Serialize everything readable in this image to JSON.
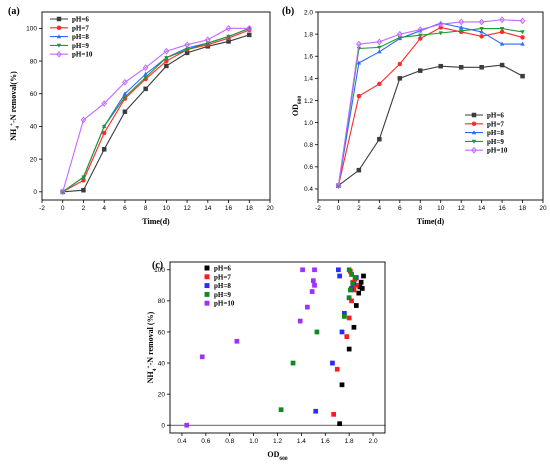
{
  "chart_data": [
    {
      "panel": "(a)",
      "type": "line",
      "xlabel": "Time(d)",
      "ylabel": "NH4+-N removal(%)",
      "ylabel_parts": {
        "base": "NH",
        "sub": "4",
        "sup": "+",
        "rest": "-N removal(%)"
      },
      "xlim": [
        -2,
        20
      ],
      "ylim": [
        -5,
        110
      ],
      "xticks": [
        -2,
        0,
        2,
        4,
        6,
        8,
        10,
        12,
        14,
        16,
        18,
        20
      ],
      "yticks": [
        0,
        20,
        40,
        60,
        80,
        100
      ],
      "x": [
        0,
        2,
        4,
        6,
        8,
        10,
        12,
        14,
        16,
        18
      ],
      "legend_position": "top-left",
      "series": [
        {
          "name": "pH=6",
          "color": "#3c3c3c",
          "marker": "square",
          "values": [
            0,
            1,
            26,
            49,
            63,
            77,
            85,
            89,
            92,
            96
          ]
        },
        {
          "name": "pH=7",
          "color": "#ff2a2a",
          "marker": "circle",
          "values": [
            0,
            7,
            36,
            57,
            69,
            80,
            87,
            90,
            94,
            99
          ]
        },
        {
          "name": "pH=8",
          "color": "#2a6bff",
          "marker": "triangle-up",
          "values": [
            0,
            9,
            40,
            60,
            72,
            82,
            88,
            91,
            95,
            100
          ]
        },
        {
          "name": "pH=9",
          "color": "#1f9a2e",
          "marker": "triangle-down",
          "values": [
            0,
            9,
            40,
            58,
            70,
            82,
            87,
            91,
            95,
            100
          ]
        },
        {
          "name": "pH=10",
          "color": "#c26aff",
          "marker": "diamond",
          "values": [
            0,
            44,
            54,
            67,
            76,
            86,
            90,
            93,
            100,
            100
          ]
        }
      ]
    },
    {
      "panel": "(b)",
      "type": "line",
      "xlabel": "Time(d)",
      "ylabel": "OD600",
      "ylabel_parts": {
        "base": "OD",
        "sub": "600"
      },
      "xlim": [
        -2,
        20
      ],
      "ylim": [
        0.3,
        2.0
      ],
      "xticks": [
        -2,
        0,
        2,
        4,
        6,
        8,
        10,
        12,
        14,
        16,
        18,
        20
      ],
      "yticks": [
        0.4,
        0.6,
        0.8,
        1.0,
        1.2,
        1.4,
        1.6,
        1.8,
        2.0
      ],
      "ytick_labels": [
        "0.4",
        "0.6",
        "0.8",
        "1.0",
        "1.2",
        "1.4",
        "1.6",
        "1.8",
        "2.0"
      ],
      "x": [
        0,
        2,
        4,
        6,
        8,
        10,
        12,
        14,
        16,
        18
      ],
      "legend_position": "bottom-right",
      "series": [
        {
          "name": "pH=6",
          "color": "#3c3c3c",
          "marker": "square",
          "values": [
            0.43,
            0.57,
            0.85,
            1.4,
            1.47,
            1.51,
            1.5,
            1.5,
            1.52,
            1.42
          ]
        },
        {
          "name": "pH=7",
          "color": "#ff2a2a",
          "marker": "circle",
          "values": [
            0.43,
            1.24,
            1.35,
            1.53,
            1.76,
            1.86,
            1.82,
            1.78,
            1.82,
            1.77
          ]
        },
        {
          "name": "pH=8",
          "color": "#2a6bff",
          "marker": "triangle-up",
          "values": [
            0.43,
            1.54,
            1.64,
            1.76,
            1.83,
            1.9,
            1.86,
            1.82,
            1.71,
            1.71
          ]
        },
        {
          "name": "pH=9",
          "color": "#1f9a2e",
          "marker": "triangle-down",
          "values": [
            0.43,
            1.67,
            1.68,
            1.77,
            1.79,
            1.81,
            1.83,
            1.85,
            1.85,
            1.82
          ]
        },
        {
          "name": "pH=10",
          "color": "#c26aff",
          "marker": "diamond",
          "values": [
            0.43,
            1.71,
            1.73,
            1.8,
            1.84,
            1.89,
            1.91,
            1.91,
            1.93,
            1.92
          ]
        }
      ]
    },
    {
      "panel": "(c)",
      "type": "scatter",
      "xlabel": "OD600",
      "xlabel_parts": {
        "base": "OD",
        "sub": "600"
      },
      "ylabel": "NH4+-N removal (%)",
      "ylabel_parts": {
        "base": "NH",
        "sub": "4",
        "sup": "+",
        "rest": "-N removal (%)"
      },
      "xlim": [
        0.3,
        2.1
      ],
      "ylim": [
        -5,
        105
      ],
      "xticks": [
        0.4,
        0.6,
        0.8,
        1.0,
        1.2,
        1.4,
        1.6,
        1.8,
        2.0
      ],
      "xtick_labels": [
        "0.4",
        "0.6",
        "0.8",
        "1.0",
        "1.2",
        "1.4",
        "1.6",
        "1.8",
        "2.0"
      ],
      "yticks": [
        0,
        20,
        40,
        60,
        80,
        100
      ],
      "hline": 0,
      "legend_position": "top-right",
      "series": [
        {
          "name": "pH=6",
          "color": "#000000",
          "marker": "square",
          "points": [
            [
              1.72,
              1
            ],
            [
              1.74,
              26
            ],
            [
              1.8,
              49
            ],
            [
              1.84,
              63
            ],
            [
              1.86,
              77
            ],
            [
              1.88,
              85
            ],
            [
              1.89,
              89
            ],
            [
              1.9,
              92
            ],
            [
              1.92,
              96
            ],
            [
              1.91,
              88
            ]
          ]
        },
        {
          "name": "pH=7",
          "color": "#ff1a1a",
          "marker": "square",
          "points": [
            [
              1.67,
              7
            ],
            [
              1.7,
              36
            ],
            [
              1.78,
              57
            ],
            [
              1.8,
              69
            ],
            [
              1.82,
              80
            ],
            [
              1.84,
              87
            ],
            [
              1.86,
              90
            ],
            [
              1.85,
              94
            ],
            [
              1.81,
              99
            ],
            [
              1.83,
              92
            ]
          ]
        },
        {
          "name": "pH=8",
          "color": "#2a2aff",
          "marker": "square",
          "points": [
            [
              1.52,
              9
            ],
            [
              1.66,
              40
            ],
            [
              1.74,
              60
            ],
            [
              1.76,
              72
            ],
            [
              1.8,
              82
            ],
            [
              1.82,
              88
            ],
            [
              1.84,
              91
            ],
            [
              1.86,
              95
            ],
            [
              1.71,
              100
            ],
            [
              1.72,
              96
            ]
          ]
        },
        {
          "name": "pH=9",
          "color": "#0f8a1f",
          "marker": "square",
          "points": [
            [
              1.23,
              10
            ],
            [
              1.33,
              40
            ],
            [
              1.53,
              60
            ],
            [
              1.76,
              70
            ],
            [
              1.8,
              82
            ],
            [
              1.81,
              87
            ],
            [
              1.83,
              91
            ],
            [
              1.85,
              95
            ],
            [
              1.8,
              100
            ],
            [
              1.82,
              97
            ]
          ]
        },
        {
          "name": "pH=10",
          "color": "#9b30ff",
          "marker": "square",
          "points": [
            [
              0.44,
              0
            ],
            [
              0.57,
              44
            ],
            [
              0.86,
              54
            ],
            [
              1.39,
              67
            ],
            [
              1.45,
              76
            ],
            [
              1.49,
              86
            ],
            [
              1.51,
              90
            ],
            [
              1.5,
              93
            ],
            [
              1.41,
              100
            ],
            [
              1.51,
              100
            ]
          ]
        }
      ]
    }
  ]
}
